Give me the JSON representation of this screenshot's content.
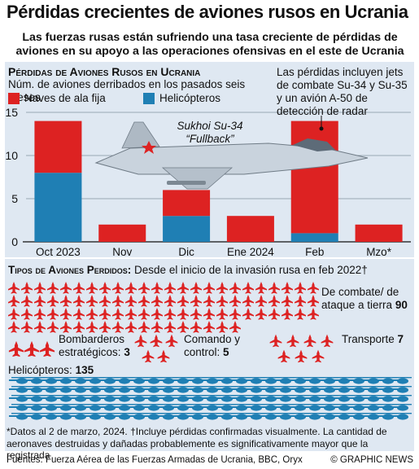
{
  "header": {
    "title": "Pérdidas crecientes de aviones rusos en Ucrania",
    "subtitle": "Las fuerzas rusas están sufriendo una tasa creciente de pérdidas de aviones en su apoyo a las operaciones ofensivas en el este de Ucrania"
  },
  "colors": {
    "fixed_wing": "#dd2222",
    "helicopter": "#1f7fb4",
    "panel": "#dfe8f2",
    "jet_body": "#c9d3dd"
  },
  "chart_data": {
    "type": "bar",
    "title": "Pérdidas de Aviones Rusos en Ucrania",
    "ylabel": "Núm. de aviones derribados en los pasados seis meses",
    "categories": [
      "Oct 2023",
      "Nov",
      "Dic",
      "Ene 2024",
      "Feb",
      "Mzo*"
    ],
    "series": [
      {
        "name": "Naves de ala fija",
        "color": "#dd2222",
        "values": [
          6,
          2,
          3,
          3,
          13,
          2
        ]
      },
      {
        "name": "Helicópteros",
        "color": "#1f7fb4",
        "values": [
          8,
          0,
          3,
          0,
          1,
          0
        ]
      }
    ],
    "ylim": [
      0,
      15
    ],
    "yticks": [
      0,
      5,
      10,
      15
    ],
    "stacked": true,
    "grid": true,
    "annotations": {
      "plane_name": "Sukhoi Su-34",
      "plane_nickname": "“Fullback”",
      "note": "Las pérdidas incluyen jets de combate Su-34 y Su-35 y un avión A-50 de detección de radar"
    }
  },
  "types_section": {
    "title_caps": "Tipos de Aviones Perdidos:",
    "title_rest": "Desde el inicio de la invasión rusa en feb 2022†",
    "categories": [
      {
        "label": "De combate/ de ataque a tierra",
        "value": "90",
        "icons": 90
      },
      {
        "label": "Bombarderos estratégicos:",
        "value": "3",
        "icons": 3
      },
      {
        "label": "Comando y control:",
        "value": "5",
        "icons": 5
      },
      {
        "label": "Transporte",
        "value": "7",
        "icons": 7
      },
      {
        "label": "Helicópteros:",
        "value": "135",
        "icons": 135
      }
    ]
  },
  "footnote": "*Datos al 2 de marzo, 2024. †Incluye pérdidas confirmadas visualmente. La cantidad de aeronaves destruidas y dañadas probablemente es significativamente mayor que la registrada",
  "sources": "Fuentes: Fuerza Aérea de las Fuerzas Armadas de Ucrania, BBC, Oryx",
  "credit": "© GRAPHIC NEWS"
}
